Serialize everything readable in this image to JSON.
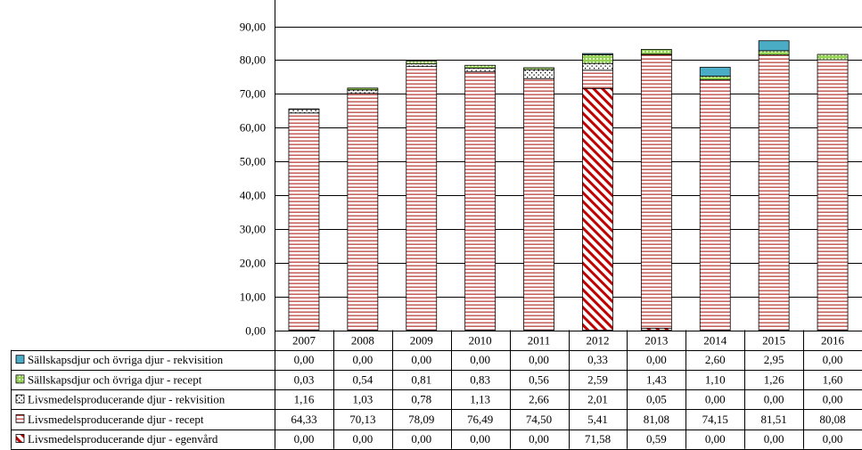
{
  "chart_data": {
    "type": "bar",
    "stacked": true,
    "ylim": [
      0,
      90
    ],
    "y_ticks": [
      "0,00",
      "10,00",
      "20,00",
      "30,00",
      "40,00",
      "50,00",
      "60,00",
      "70,00",
      "80,00",
      "90,00"
    ],
    "grid": "horizontal",
    "legend": "data-table-left",
    "categories": [
      "2007",
      "2008",
      "2009",
      "2010",
      "2011",
      "2012",
      "2013",
      "2014",
      "2015",
      "2016"
    ],
    "series": [
      {
        "name": "Livsmedelsproducerande djur - egenvård",
        "pattern": "diagonal",
        "color": "#c00000",
        "values": [
          0.0,
          0.0,
          0.0,
          0.0,
          0.0,
          71.58,
          0.59,
          0.0,
          0.0,
          0.0
        ],
        "labels": [
          "0,00",
          "0,00",
          "0,00",
          "0,00",
          "0,00",
          "71,58",
          "0,59",
          "0,00",
          "0,00",
          "0,00"
        ]
      },
      {
        "name": "Livsmedelsproducerande djur - recept",
        "pattern": "horizontal-lines",
        "color": "#c0504d",
        "values": [
          64.33,
          70.13,
          78.09,
          76.49,
          74.5,
          5.41,
          81.08,
          74.15,
          81.51,
          80.08
        ],
        "labels": [
          "64,33",
          "70,13",
          "78,09",
          "76,49",
          "74,50",
          "5,41",
          "81,08",
          "74,15",
          "81,51",
          "80,08"
        ]
      },
      {
        "name": "Livsmedelsproducerande djur - rekvisition",
        "pattern": "dotted",
        "color": "#000000",
        "values": [
          1.16,
          1.03,
          0.78,
          1.13,
          2.66,
          2.01,
          0.05,
          0.0,
          0.0,
          0.0
        ],
        "labels": [
          "1,16",
          "1,03",
          "0,78",
          "1,13",
          "2,66",
          "2,01",
          "0,05",
          "0,00",
          "0,00",
          "0,00"
        ]
      },
      {
        "name": "Sällskapsdjur och övriga djur - recept",
        "pattern": "grid",
        "color": "#00b050",
        "values": [
          0.03,
          0.54,
          0.81,
          0.83,
          0.56,
          2.59,
          1.43,
          1.1,
          1.26,
          1.6
        ],
        "labels": [
          "0,03",
          "0,54",
          "0,81",
          "0,83",
          "0,56",
          "2,59",
          "1,43",
          "1,10",
          "1,26",
          "1,60"
        ]
      },
      {
        "name": "Sällskapsdjur och övriga djur - rekvisition",
        "pattern": "solid",
        "color": "#4bacc6",
        "values": [
          0.0,
          0.0,
          0.0,
          0.0,
          0.0,
          0.33,
          0.0,
          2.6,
          2.95,
          0.0
        ],
        "labels": [
          "0,00",
          "0,00",
          "0,00",
          "0,00",
          "0,00",
          "0,33",
          "0,00",
          "2,60",
          "2,95",
          "0,00"
        ]
      }
    ]
  }
}
